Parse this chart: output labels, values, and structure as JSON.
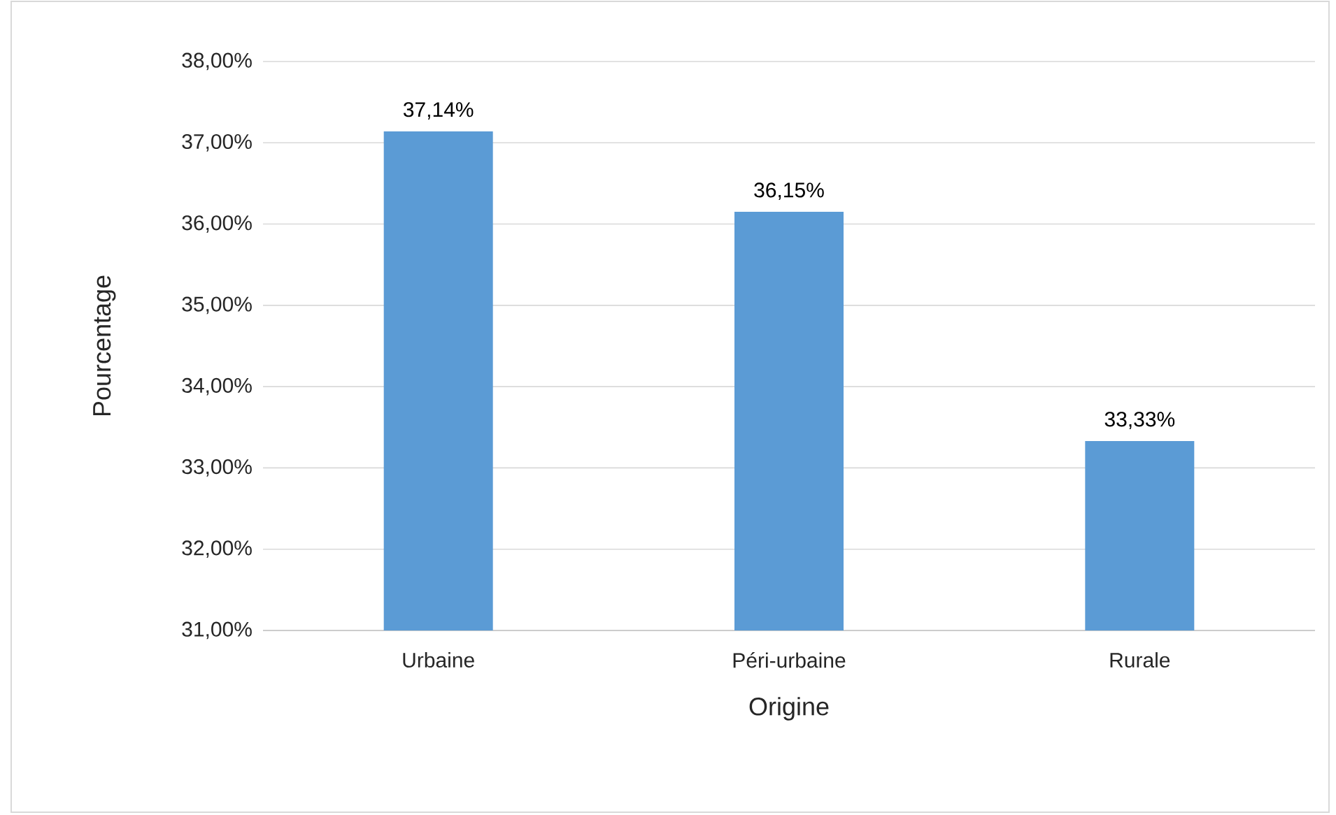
{
  "chart_data": {
    "type": "bar",
    "xlabel": "Origine",
    "ylabel": "Pourcentage",
    "categories": [
      "Urbaine",
      "Péri-urbaine",
      "Rurale"
    ],
    "values": [
      37.14,
      36.15,
      33.33
    ],
    "value_labels": [
      "37,14%",
      "36,15%",
      "33,33%"
    ],
    "color": "#5b9bd5",
    "ylim": [
      31,
      38
    ],
    "yticks": [
      {
        "value": 31,
        "label": "31,00%"
      },
      {
        "value": 32,
        "label": "32,00%"
      },
      {
        "value": 33,
        "label": "33,00%"
      },
      {
        "value": 34,
        "label": "34,00%"
      },
      {
        "value": 35,
        "label": "35,00%"
      },
      {
        "value": 36,
        "label": "36,00%"
      },
      {
        "value": 37,
        "label": "37,00%"
      },
      {
        "value": 38,
        "label": "38,00%"
      }
    ],
    "grid": "y"
  }
}
